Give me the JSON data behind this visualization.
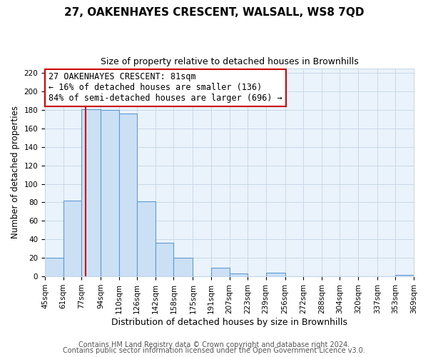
{
  "title": "27, OAKENHAYES CRESCENT, WALSALL, WS8 7QD",
  "subtitle": "Size of property relative to detached houses in Brownhills",
  "xlabel": "Distribution of detached houses by size in Brownhills",
  "ylabel": "Number of detached properties",
  "footer_line1": "Contains HM Land Registry data © Crown copyright and database right 2024.",
  "footer_line2": "Contains public sector information licensed under the Open Government Licence v3.0.",
  "bin_edges": [
    45,
    61,
    77,
    94,
    110,
    126,
    142,
    158,
    175,
    191,
    207,
    223,
    239,
    256,
    272,
    288,
    304,
    320,
    337,
    353,
    369
  ],
  "bin_labels": [
    "45sqm",
    "61sqm",
    "77sqm",
    "94sqm",
    "110sqm",
    "126sqm",
    "142sqm",
    "158sqm",
    "175sqm",
    "191sqm",
    "207sqm",
    "223sqm",
    "239sqm",
    "256sqm",
    "272sqm",
    "288sqm",
    "304sqm",
    "320sqm",
    "337sqm",
    "353sqm",
    "369sqm"
  ],
  "counts": [
    20,
    82,
    181,
    180,
    176,
    81,
    36,
    20,
    0,
    9,
    3,
    0,
    4,
    0,
    0,
    0,
    0,
    0,
    0,
    2
  ],
  "bar_facecolor": "#cce0f5",
  "bar_edgecolor": "#5b9bd5",
  "grid_color": "#c8d8e8",
  "plot_bg_color": "#eaf3fb",
  "fig_bg_color": "#ffffff",
  "property_size": 81,
  "property_line_color": "#cc0000",
  "annotation_line1": "27 OAKENHAYES CRESCENT: 81sqm",
  "annotation_line2": "← 16% of detached houses are smaller (136)",
  "annotation_line3": "84% of semi-detached houses are larger (696) →",
  "annotation_fontsize": 8.5,
  "title_fontsize": 11,
  "subtitle_fontsize": 9,
  "xlabel_fontsize": 9,
  "ylabel_fontsize": 8.5,
  "tick_fontsize": 7.5,
  "footer_fontsize": 7,
  "ylim": [
    0,
    225
  ],
  "yticks": [
    0,
    20,
    40,
    60,
    80,
    100,
    120,
    140,
    160,
    180,
    200,
    220
  ]
}
